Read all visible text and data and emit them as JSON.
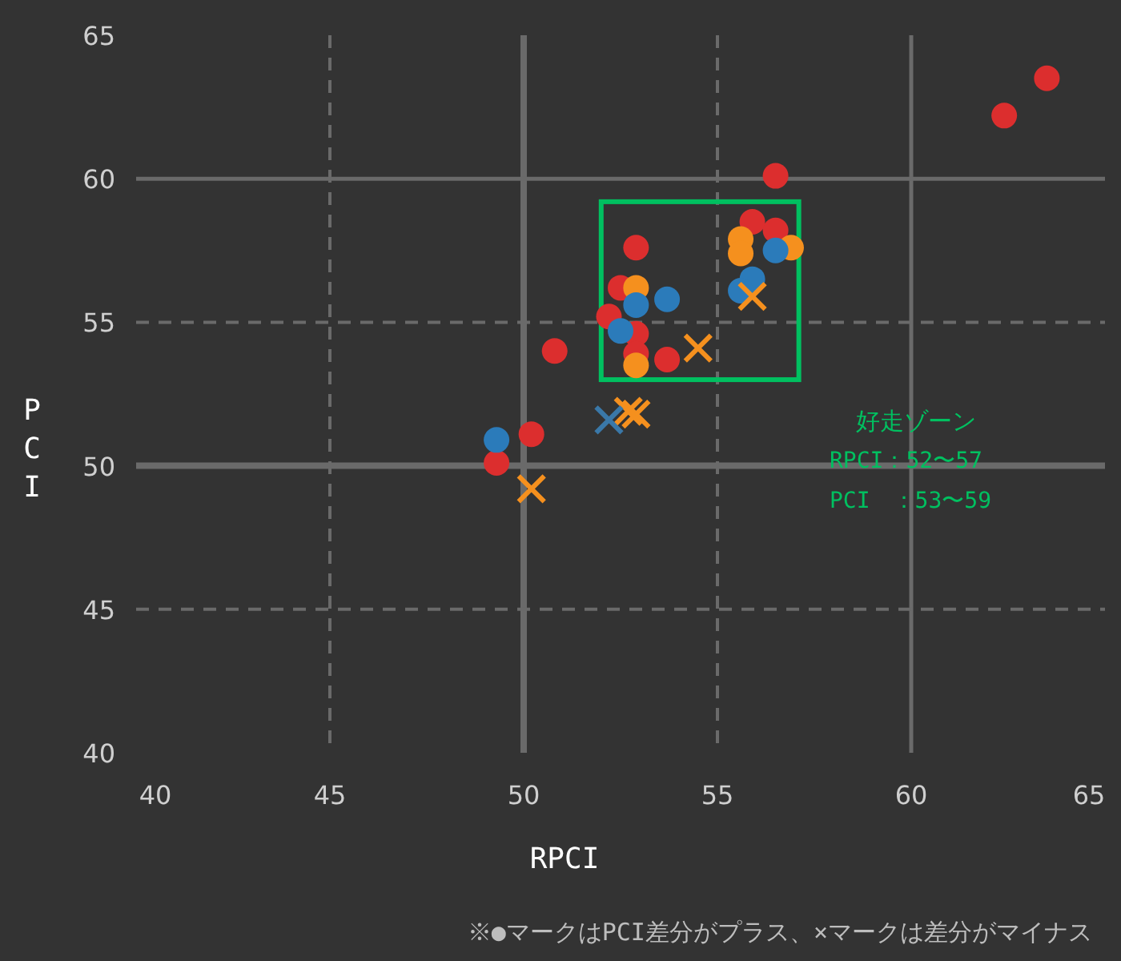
{
  "chart_data": {
    "type": "scatter",
    "xlabel": "RPCI",
    "ylabel": "PCI",
    "xlim": [
      40,
      65
    ],
    "ylim": [
      40,
      65
    ],
    "xticks": [
      40,
      45,
      50,
      55,
      60,
      65
    ],
    "yticks": [
      40,
      45,
      50,
      55,
      60,
      65
    ],
    "grid": true,
    "series": [
      {
        "color": "#dc2e2e",
        "marker": "circle",
        "x": [
          49.3,
          50.2,
          50.8,
          52.9,
          52.5,
          52.2,
          52.9,
          52.9,
          53.7,
          56.5,
          55.9,
          56.5,
          62.4,
          63.5
        ],
        "values": [
          50.1,
          51.1,
          54.0,
          57.6,
          56.2,
          55.2,
          54.6,
          53.9,
          53.7,
          60.1,
          58.5,
          58.2,
          62.2,
          63.5
        ]
      },
      {
        "color": "#f5901e",
        "marker": "circle",
        "x": [
          52.9,
          55.6,
          55.6,
          56.9,
          52.9
        ],
        "values": [
          53.5,
          57.9,
          57.4,
          57.6,
          56.2
        ]
      },
      {
        "color": "#2b7bba",
        "marker": "circle",
        "x": [
          49.3,
          52.9,
          53.7,
          52.5,
          56.5,
          55.9,
          55.6
        ],
        "values": [
          50.9,
          55.6,
          55.8,
          54.7,
          57.5,
          56.5,
          56.1
        ]
      },
      {
        "color": "#f5901e",
        "marker": "cross",
        "x": [
          50.2,
          52.9,
          52.7,
          54.5,
          55.9
        ],
        "values": [
          49.2,
          51.8,
          51.9,
          54.1,
          55.9
        ]
      },
      {
        "color": "#3a78a8",
        "marker": "cross",
        "x": [
          52.2
        ],
        "values": [
          51.6
        ]
      }
    ],
    "annotations": [
      "好走ゾーン",
      "RPCI：52〜57",
      "PCI　：53〜59",
      "※●マークはPCI差分がプラス、×マークは差分がマイナス"
    ]
  }
}
